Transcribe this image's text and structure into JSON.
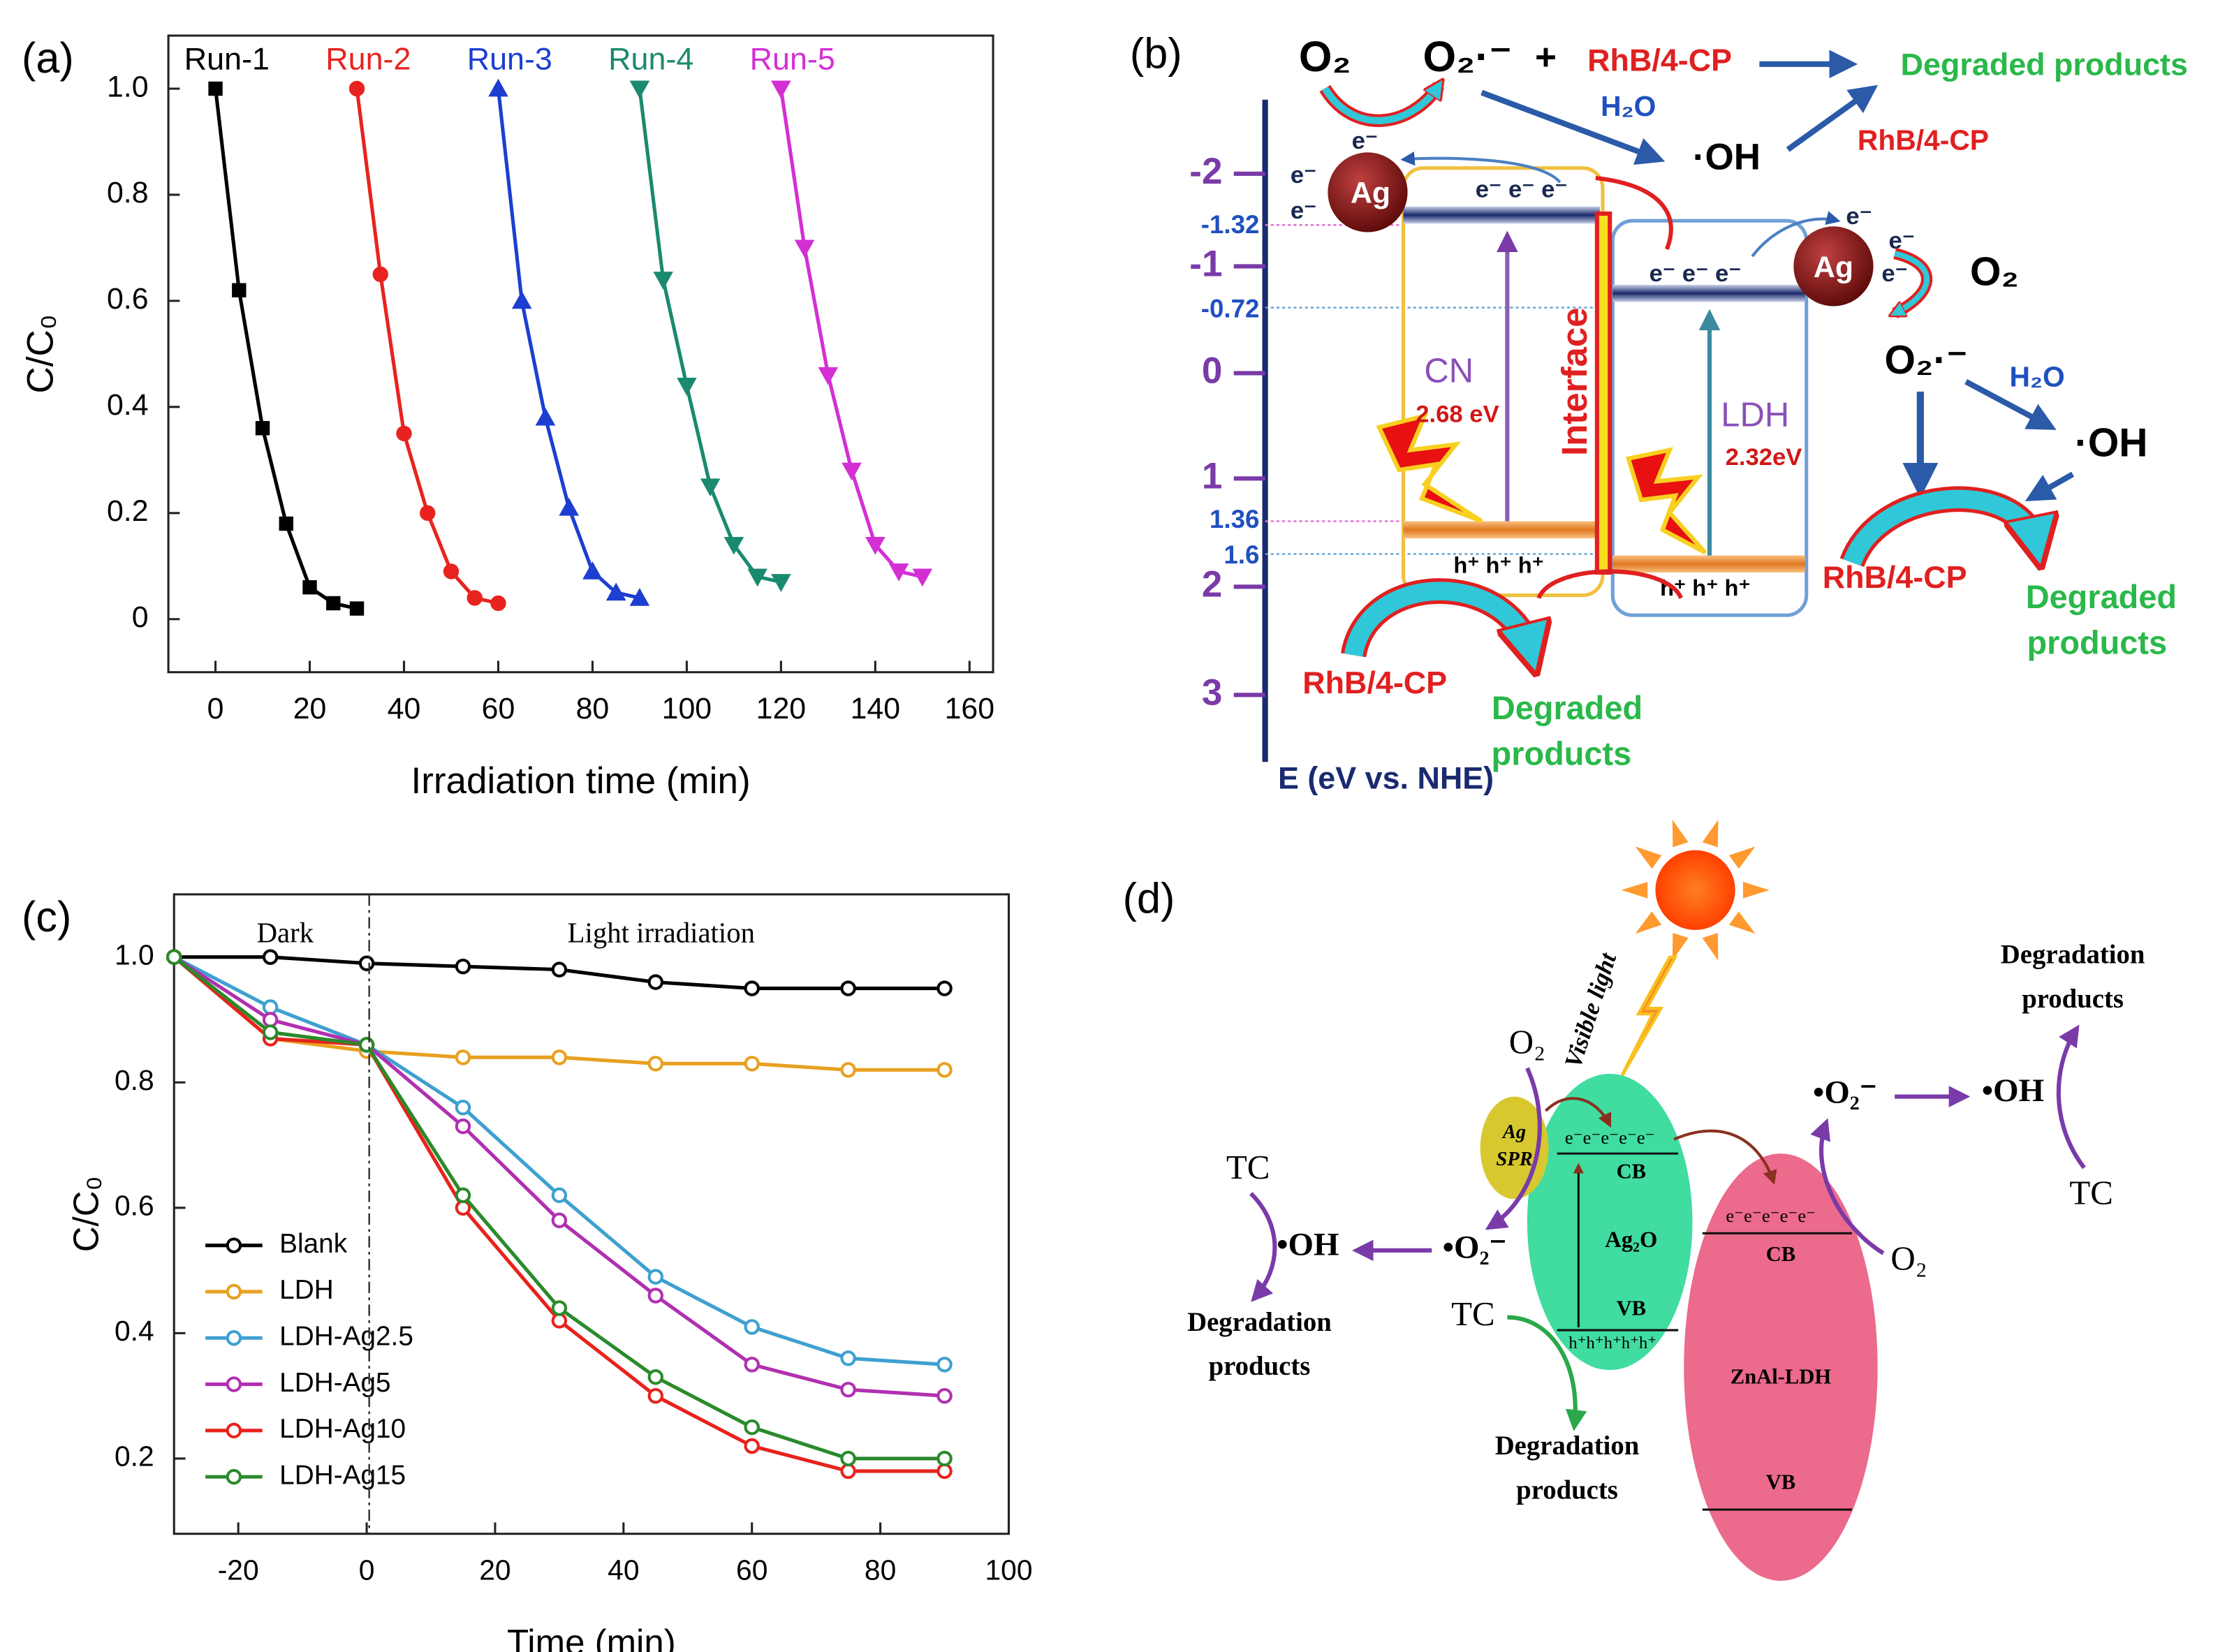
{
  "chart_data": [
    {
      "type": "line",
      "panel": "(a)",
      "xlabel": "Irradiation time (min)",
      "ylabel": "C/C₀",
      "xlim": [
        -10,
        165
      ],
      "ylim": [
        -0.1,
        1.1
      ],
      "xticks": [
        0,
        20,
        40,
        60,
        80,
        100,
        120,
        140,
        160
      ],
      "yticks": [
        0,
        0.2,
        0.4,
        0.6,
        0.8,
        {
          "value": 1,
          "label": "1.0"
        }
      ],
      "legend": "top",
      "series": [
        {
          "name": "Run-1",
          "color": "#000000",
          "marker": "square",
          "x": [
            0,
            5,
            10,
            15,
            20,
            25,
            30
          ],
          "values": [
            1.0,
            0.62,
            0.36,
            0.18,
            0.06,
            0.03,
            0.02
          ]
        },
        {
          "name": "Run-2",
          "color": "#e8231f",
          "marker": "circle",
          "x": [
            30,
            35,
            40,
            45,
            50,
            55,
            60
          ],
          "values": [
            1.0,
            0.65,
            0.35,
            0.2,
            0.09,
            0.04,
            0.03
          ]
        },
        {
          "name": "Run-3",
          "color": "#1c3fd1",
          "marker": "triangle-up",
          "x": [
            60,
            65,
            70,
            75,
            80,
            85,
            90
          ],
          "values": [
            1.0,
            0.6,
            0.38,
            0.21,
            0.09,
            0.05,
            0.04
          ]
        },
        {
          "name": "Run-4",
          "color": "#1a8a6e",
          "marker": "triangle-down",
          "x": [
            90,
            95,
            100,
            105,
            110,
            115,
            120
          ],
          "values": [
            1.0,
            0.64,
            0.44,
            0.25,
            0.14,
            0.08,
            0.07
          ]
        },
        {
          "name": "Run-5",
          "color": "#d42fd4",
          "marker": "triangle-down",
          "x": [
            120,
            125,
            130,
            135,
            140,
            145,
            150
          ],
          "values": [
            1.0,
            0.7,
            0.46,
            0.28,
            0.14,
            0.09,
            0.08
          ]
        }
      ]
    },
    {
      "type": "line",
      "panel": "(c)",
      "xlabel": "Time (min)",
      "ylabel": "C/C₀",
      "annotations": [
        "Dark",
        "Light irradiation"
      ],
      "xlim": [
        -30,
        100
      ],
      "ylim": [
        0.08,
        1.1
      ],
      "xticks": [
        -20,
        0,
        20,
        40,
        60,
        80,
        100
      ],
      "yticks": [
        0.2,
        0.4,
        0.6,
        0.8,
        {
          "value": 1,
          "label": "1.0"
        }
      ],
      "legend": "lower left",
      "series": [
        {
          "name": "Blank",
          "color": "#000000",
          "marker": "open-circle",
          "x": [
            -30,
            -15,
            0,
            15,
            30,
            45,
            60,
            75,
            90
          ],
          "values": [
            1.0,
            1.0,
            0.99,
            0.985,
            0.98,
            0.96,
            0.95,
            0.95,
            0.95
          ]
        },
        {
          "name": "LDH",
          "color": "#e8a020",
          "marker": "open-circle",
          "x": [
            -30,
            -15,
            0,
            15,
            30,
            45,
            60,
            75,
            90
          ],
          "values": [
            1.0,
            0.87,
            0.85,
            0.84,
            0.84,
            0.83,
            0.83,
            0.82,
            0.82
          ]
        },
        {
          "name": "LDH-Ag2.5",
          "color": "#3ea0d0",
          "marker": "open-circle",
          "x": [
            -30,
            -15,
            0,
            15,
            30,
            45,
            60,
            75,
            90
          ],
          "values": [
            1.0,
            0.92,
            0.86,
            0.76,
            0.62,
            0.49,
            0.41,
            0.36,
            0.35
          ]
        },
        {
          "name": "LDH-Ag5",
          "color": "#b030b0",
          "marker": "open-circle",
          "x": [
            -30,
            -15,
            0,
            15,
            30,
            45,
            60,
            75,
            90
          ],
          "values": [
            1.0,
            0.9,
            0.86,
            0.73,
            0.58,
            0.46,
            0.35,
            0.31,
            0.3
          ]
        },
        {
          "name": "LDH-Ag10",
          "color": "#e8221c",
          "marker": "open-circle",
          "x": [
            -30,
            -15,
            0,
            15,
            30,
            45,
            60,
            75,
            90
          ],
          "values": [
            1.0,
            0.87,
            0.86,
            0.6,
            0.42,
            0.3,
            0.22,
            0.18,
            0.18
          ]
        },
        {
          "name": "LDH-Ag15",
          "color": "#2a8a2a",
          "marker": "open-circle",
          "x": [
            -30,
            -15,
            0,
            15,
            30,
            45,
            60,
            75,
            90
          ],
          "values": [
            1.0,
            0.88,
            0.86,
            0.62,
            0.44,
            0.33,
            0.25,
            0.2,
            0.2
          ]
        }
      ]
    }
  ],
  "diagram_b": {
    "panel": "(b)",
    "axis": {
      "title": "E (eV vs. NHE)",
      "ticks": [
        "-2",
        "-1",
        "0",
        "1",
        "2",
        "3"
      ],
      "levels": [
        "-1.32",
        "-0.72",
        "1.36",
        "1.6"
      ]
    },
    "top": {
      "o2": "O₂",
      "superoxide": "O₂·⁻",
      "plus": "+",
      "pollutant": "RhB/4-CP",
      "products": "Degraded products",
      "water": "H₂O",
      "hydroxyl": "·OH",
      "pollutant_2": "RhB/4-CP"
    },
    "cn": {
      "ag": "Ag",
      "electrons": [
        "e⁻",
        "e⁻",
        "e⁻"
      ],
      "cb_electrons": "e⁻ e⁻ e⁻",
      "name": "CN",
      "gap": "2.68 eV",
      "holes": "h⁺ h⁺ h⁺"
    },
    "interface": "Interface",
    "ldh": {
      "ag": "Ag",
      "electrons": [
        "e⁻",
        "e⁻",
        "e⁻"
      ],
      "cb_electrons": "e⁻ e⁻ e⁻",
      "name": "LDH",
      "gap": "2.32eV",
      "holes": "h⁺ h⁺ h⁺"
    },
    "right": {
      "o2": "O₂",
      "superoxide": "O₂·⁻",
      "water": "H₂O",
      "hydroxyl": "·OH",
      "pollutant": "RhB/4-CP",
      "products": [
        "Degraded",
        "products"
      ]
    },
    "bottom": {
      "pollutant": "RhB/4-CP",
      "products": [
        "Degraded",
        "products"
      ]
    }
  },
  "diagram_d": {
    "panel": "(d)",
    "light": "Visible light",
    "ag": [
      "Ag",
      "SPR"
    ],
    "ag2o": {
      "electrons": "e⁻e⁻e⁻e⁻e⁻",
      "cb": "CB",
      "name": "Ag₂O",
      "vb": "VB",
      "holes": "h⁺h⁺h⁺h⁺h⁺"
    },
    "ldh": {
      "electrons": "e⁻e⁻e⁻e⁻e⁻",
      "cb": "CB",
      "name": "ZnAl-LDH",
      "vb": "VB"
    },
    "left": {
      "o2": "O₂",
      "superoxide": "•O₂⁻",
      "hydroxyl": "•OH",
      "tc": "TC",
      "products": [
        "Degradation",
        "products"
      ]
    },
    "middle": {
      "tc": "TC",
      "products": [
        "Degradation",
        "products"
      ]
    },
    "right": {
      "o2": "O₂",
      "superoxide": "•O₂⁻",
      "hydroxyl": "•OH",
      "tc": "TC",
      "products": [
        "Degradation",
        "products"
      ]
    }
  }
}
